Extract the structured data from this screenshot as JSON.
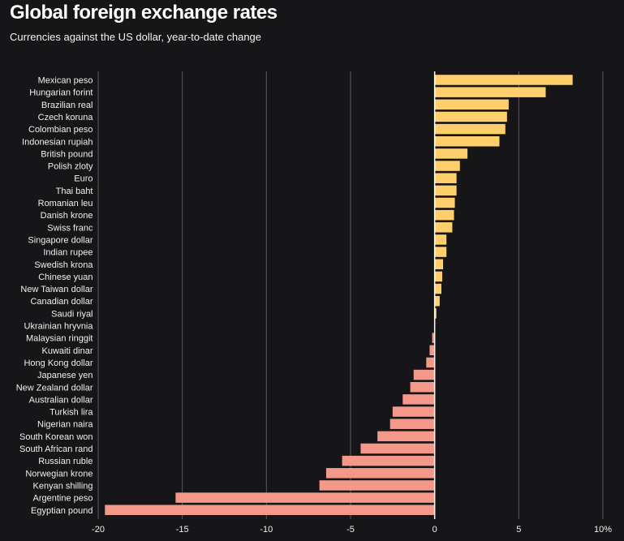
{
  "header": {
    "title": "Global foreign exchange rates",
    "subtitle": "Currencies against the US dollar, year-to-date change"
  },
  "colors": {
    "background": "#161618",
    "positive": "#fecf6a",
    "negative": "#f4998a",
    "gridline": "#5a5a5e",
    "zeroline": "#ffffff"
  },
  "chart_data": {
    "type": "bar",
    "orientation": "horizontal",
    "title": "Global foreign exchange rates",
    "subtitle": "Currencies against the US dollar, year-to-date change",
    "xlabel": "",
    "ylabel": "",
    "xlim": [
      -20,
      10
    ],
    "grid": true,
    "ticks": [
      {
        "value": -20,
        "label": "-20"
      },
      {
        "value": -15,
        "label": "-15"
      },
      {
        "value": -10,
        "label": "-10"
      },
      {
        "value": -5,
        "label": "-5"
      },
      {
        "value": 0,
        "label": "0"
      },
      {
        "value": 5,
        "label": "5"
      },
      {
        "value": 10,
        "label": "10%"
      }
    ],
    "categories": [
      "Mexican peso",
      "Hungarian forint",
      "Brazilian real",
      "Czech koruna",
      "Colombian peso",
      "Indonesian rupiah",
      "British pound",
      "Polish zloty",
      "Euro",
      "Thai baht",
      "Romanian leu",
      "Danish krone",
      "Swiss franc",
      "Singapore dollar",
      "Indian rupee",
      "Swedish krona",
      "Chinese yuan",
      "New Taiwan dollar",
      "Canadian dollar",
      "Saudi riyal",
      "Ukrainian hryvnia",
      "Malaysian ringgit",
      "Kuwaiti dinar",
      "Hong Kong dollar",
      "Japanese yen",
      "New Zealand dollar",
      "Australian dollar",
      "Turkish lira",
      "Nigerian naira",
      "South Korean won",
      "South African rand",
      "Russian ruble",
      "Norwegian krone",
      "Kenyan shilling",
      "Argentine peso",
      "Egyptian pound"
    ],
    "values": [
      8.2,
      6.6,
      4.4,
      4.3,
      4.2,
      3.85,
      1.95,
      1.5,
      1.3,
      1.3,
      1.2,
      1.15,
      1.05,
      0.7,
      0.7,
      0.5,
      0.45,
      0.4,
      0.3,
      0.1,
      0.0,
      -0.15,
      -0.3,
      -0.5,
      -1.25,
      -1.45,
      -1.9,
      -2.5,
      -2.65,
      -3.4,
      -4.4,
      -5.5,
      -6.45,
      -6.85,
      -15.4,
      -19.6
    ]
  }
}
